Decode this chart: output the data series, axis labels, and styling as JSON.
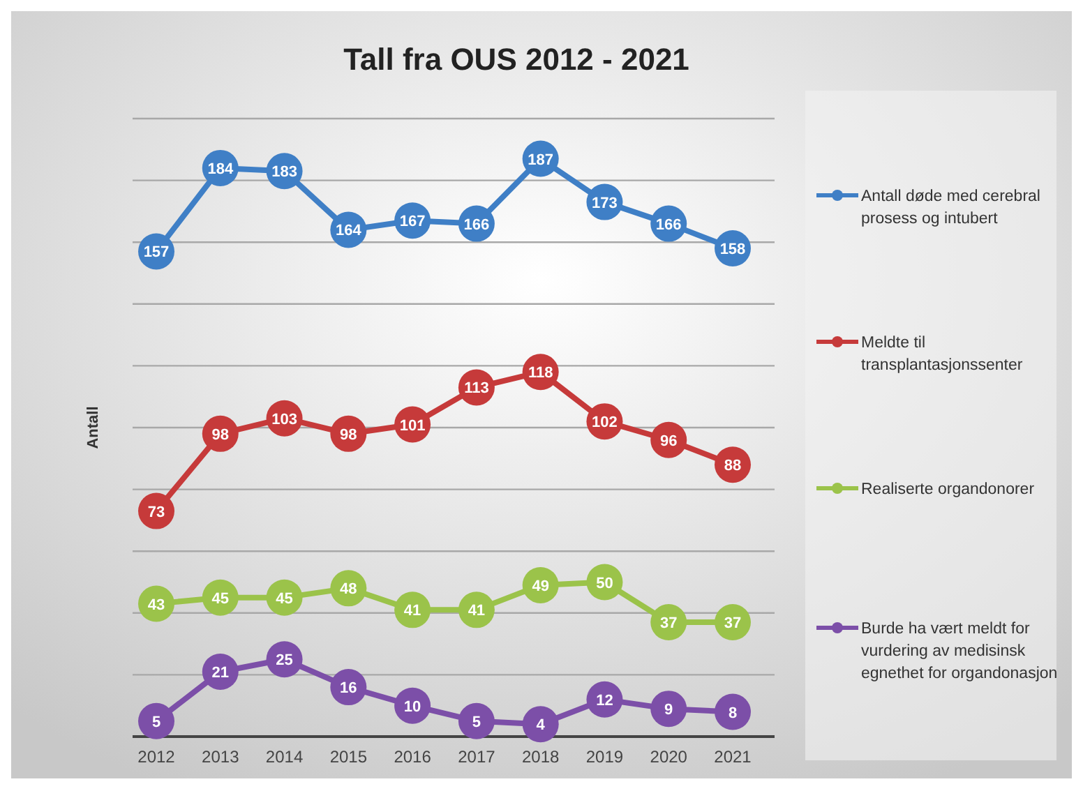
{
  "chart_data": {
    "type": "line",
    "title": "Tall fra OUS 2012 - 2021",
    "ylabel": "Antall",
    "categories": [
      "2012",
      "2013",
      "2014",
      "2015",
      "2016",
      "2017",
      "2018",
      "2019",
      "2020",
      "2021"
    ],
    "series": [
      {
        "name": "Antall  døde med cerebral prosess og intubert",
        "color": "#3f7fc6",
        "values": [
          157,
          184,
          183,
          164,
          167,
          166,
          187,
          173,
          166,
          158
        ]
      },
      {
        "name": "Meldte til transplantasjonssenter",
        "color": "#c63a3a",
        "values": [
          73,
          98,
          103,
          98,
          101,
          113,
          118,
          102,
          96,
          88
        ]
      },
      {
        "name": "Realiserte organdonorer",
        "color": "#9bc34a",
        "values": [
          43,
          45,
          45,
          48,
          41,
          41,
          49,
          50,
          37,
          37
        ]
      },
      {
        "name": "Burde ha vært meldt for vurdering av medisinsk egnethet for organdonasjon",
        "color": "#7c4fa8",
        "values": [
          5,
          21,
          25,
          16,
          10,
          5,
          4,
          12,
          9,
          8
        ]
      }
    ],
    "ylim": [
      0,
      200
    ],
    "yticks": [
      {
        "value": 0,
        "label": null
      },
      {
        "value": 20,
        "label": null
      },
      {
        "value": 40,
        "label": null
      },
      {
        "value": 60,
        "label": null
      },
      {
        "value": 80,
        "label": null
      },
      {
        "value": 100,
        "label": null
      },
      {
        "value": 120,
        "label": null
      },
      {
        "value": 140,
        "label": null
      },
      {
        "value": 160,
        "label": null
      },
      {
        "value": 180,
        "label": null
      },
      {
        "value": 200,
        "label": null
      }
    ],
    "tick_labels": "x",
    "grid": "y",
    "legend": "right",
    "marker": "circle",
    "line_style": "solid",
    "data_labels": true
  }
}
